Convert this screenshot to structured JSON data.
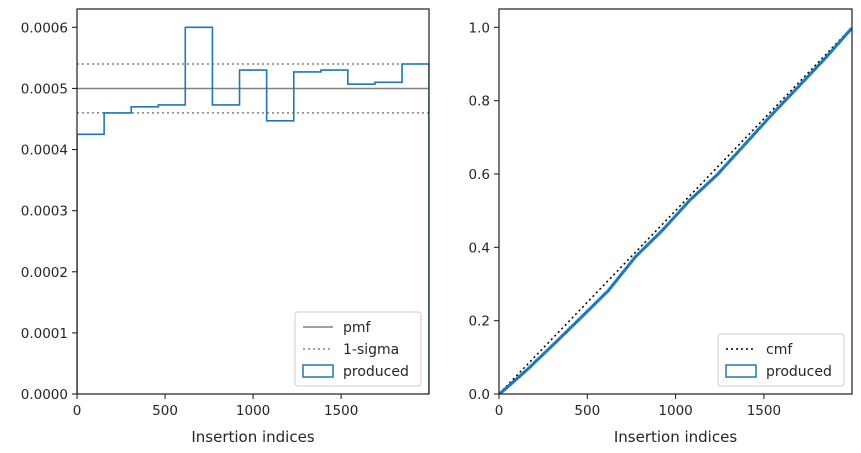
{
  "chart_data": [
    {
      "type": "step",
      "xlabel": "Insertion indices",
      "ylabel": "",
      "xlim": [
        0,
        1999
      ],
      "ylim": [
        0,
        0.00063
      ],
      "xticks": [
        0,
        500,
        1000,
        1500
      ],
      "xtick_labels": [
        "0",
        "500",
        "1000",
        "1500"
      ],
      "yticks": [
        0,
        0.0001,
        0.0002,
        0.0003,
        0.0004,
        0.0005,
        0.0006
      ],
      "ytick_labels": [
        "0.0000",
        "0.0001",
        "0.0002",
        "0.0003",
        "0.0004",
        "0.0005",
        "0.0006"
      ],
      "legend_position": "bottom-right",
      "series": [
        {
          "name": "pmf",
          "kind": "hline",
          "y": 0.0005,
          "color": "#808080",
          "dash": "solid"
        },
        {
          "name": "1-sigma",
          "kind": "hline-pair",
          "y": [
            0.00046,
            0.00054
          ],
          "color": "#808080",
          "dash": "dotted"
        },
        {
          "name": "produced",
          "kind": "histogram-step",
          "color": "#1f77b4",
          "bin_edges": [
            0,
            154,
            308,
            462,
            615,
            769,
            923,
            1077,
            1231,
            1385,
            1538,
            1692,
            1846,
            1999
          ],
          "values": [
            0.000425,
            0.00046,
            0.00047,
            0.000473,
            0.0006,
            0.000473,
            0.00053,
            0.000447,
            0.000527,
            0.00053,
            0.000507,
            0.00051,
            0.00054
          ]
        }
      ]
    },
    {
      "type": "line",
      "xlabel": "Insertion indices",
      "ylabel": "",
      "xlim": [
        0,
        1999
      ],
      "ylim": [
        0,
        1.05
      ],
      "xticks": [
        0,
        500,
        1000,
        1500
      ],
      "xtick_labels": [
        "0",
        "500",
        "1000",
        "1500"
      ],
      "yticks": [
        0,
        0.2,
        0.4,
        0.6,
        0.8,
        1.0
      ],
      "ytick_labels": [
        "0.0",
        "0.2",
        "0.4",
        "0.6",
        "0.8",
        "1.0"
      ],
      "legend_position": "bottom-right",
      "series": [
        {
          "name": "cmf",
          "kind": "line",
          "x": [
            0,
            1999
          ],
          "y": [
            0,
            1.0
          ],
          "color": "#000000",
          "dash": "dotted"
        },
        {
          "name": "produced",
          "kind": "cumulative-step",
          "color": "#1f77b4",
          "x": [
            0,
            154,
            308,
            462,
            615,
            769,
            923,
            1077,
            1231,
            1385,
            1538,
            1692,
            1846,
            1999
          ],
          "y": [
            0,
            0.0654,
            0.1363,
            0.2088,
            0.2815,
            0.374,
            0.4468,
            0.5284,
            0.5973,
            0.6785,
            0.76,
            0.838,
            0.9166,
            1.0
          ]
        }
      ]
    }
  ]
}
